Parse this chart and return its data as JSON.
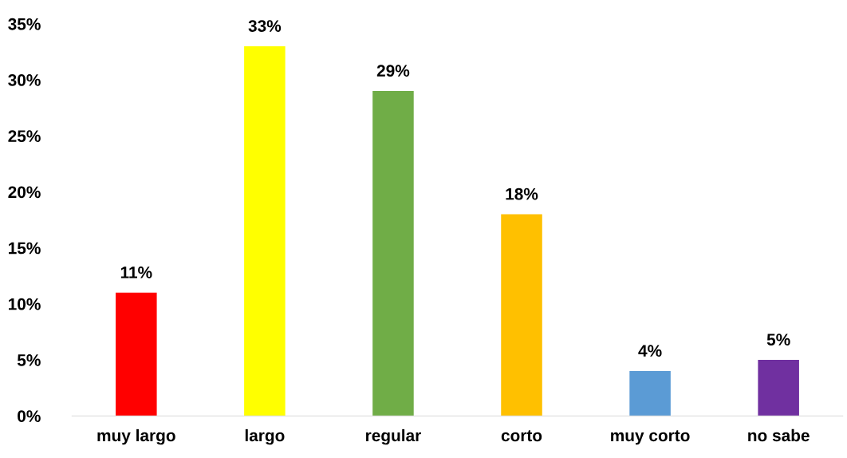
{
  "chart_data": {
    "type": "bar",
    "categories": [
      "muy largo",
      "largo",
      "regular",
      "corto",
      "muy corto",
      "no sabe"
    ],
    "values": [
      11,
      33,
      29,
      18,
      4,
      5
    ],
    "colors": [
      "#ff0000",
      "#ffff00",
      "#70ad47",
      "#ffc000",
      "#5b9bd5",
      "#7030a0"
    ],
    "value_labels": [
      "11%",
      "33%",
      "29%",
      "18%",
      "4%",
      "5%"
    ],
    "ylim": [
      0,
      35
    ],
    "yticks": [
      {
        "value": 0,
        "label": "0%"
      },
      {
        "value": 5,
        "label": "5%"
      },
      {
        "value": 10,
        "label": "10%"
      },
      {
        "value": 15,
        "label": "15%"
      },
      {
        "value": 20,
        "label": "20%"
      },
      {
        "value": 25,
        "label": "25%"
      },
      {
        "value": 30,
        "label": "30%"
      },
      {
        "value": 35,
        "label": "35%"
      }
    ],
    "grid": false,
    "legend": false
  }
}
